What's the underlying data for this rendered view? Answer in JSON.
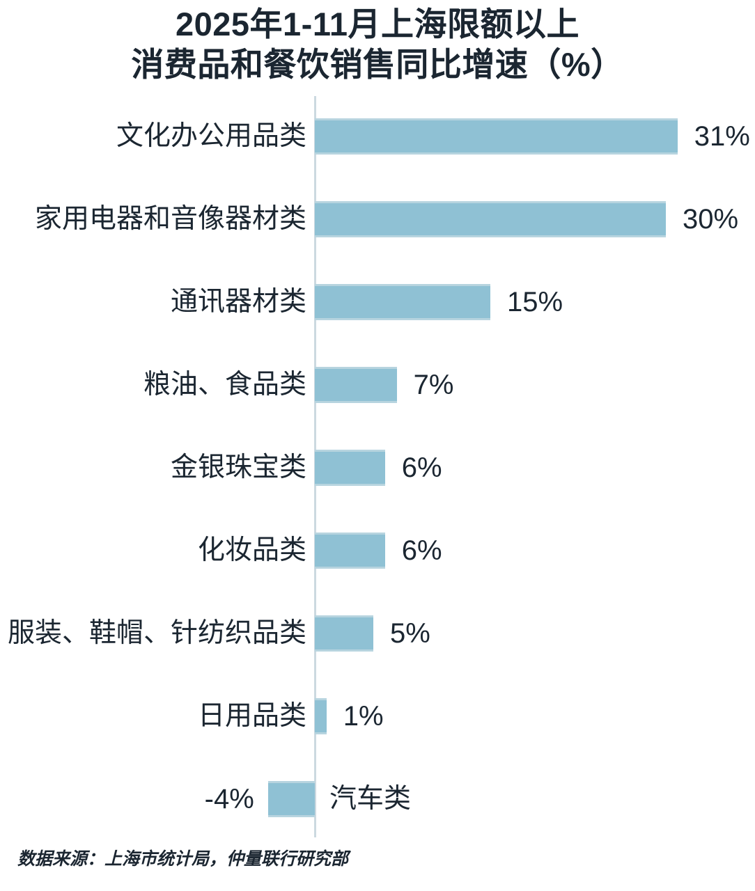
{
  "page": {
    "title_line1": "2025年1-11月上海限额以上",
    "title_line2": "消费品和餐饮销售同比增速（%）",
    "source_note": "数据来源：上海市统计局，仲量联行研究部"
  },
  "colors": {
    "bar_fill": "#8FC1D4",
    "bar_edge": "#B7D4DF",
    "axis_line": "#CCD9E0",
    "text": "#1B2631",
    "background": "#FFFFFF"
  },
  "chart_data": {
    "type": "bar",
    "orientation": "horizontal",
    "title": "2025年1-11月上海限额以上消费品和餐饮销售同比增速（%）",
    "categories": [
      "文化办公用品类",
      "家用电器和音像器材类",
      "通讯器材类",
      "粮油、食品类",
      "金银珠宝类",
      "化妆品类",
      "服装、鞋帽、针纺织品类",
      "日用品类",
      "汽车类"
    ],
    "values": [
      31,
      30,
      15,
      7,
      6,
      6,
      5,
      1,
      -4
    ],
    "value_labels": [
      "31%",
      "30%",
      "15%",
      "7%",
      "6%",
      "6%",
      "5%",
      "1%",
      "-4%"
    ],
    "xlabel": "",
    "ylabel": "",
    "xlim": [
      -6,
      37
    ],
    "grid": false,
    "legend": null,
    "axis": "vertical zero line only",
    "source": "数据来源：上海市统计局，仲量联行研究部"
  }
}
